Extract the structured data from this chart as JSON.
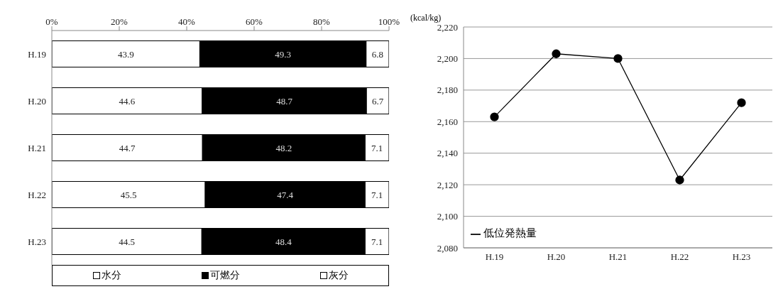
{
  "chart_data": [
    {
      "type": "bar",
      "orientation": "horizontal",
      "stacked": true,
      "categories": [
        "H.19",
        "H.20",
        "H.21",
        "H.22",
        "H.23"
      ],
      "series": [
        {
          "name": "水分",
          "color": "#ffffff",
          "values": [
            43.9,
            44.6,
            44.7,
            45.5,
            44.5
          ]
        },
        {
          "name": "可燃分",
          "color": "#000000",
          "values": [
            49.3,
            48.7,
            48.2,
            47.4,
            48.4
          ]
        },
        {
          "name": "灰分",
          "color": "#ffffff",
          "values": [
            6.8,
            6.7,
            7.1,
            7.1,
            7.1
          ]
        }
      ],
      "xlim": [
        0,
        100
      ],
      "xticks": [
        {
          "value": 0,
          "label": "0%"
        },
        {
          "value": 20,
          "label": "20%"
        },
        {
          "value": 40,
          "label": "40%"
        },
        {
          "value": 60,
          "label": "60%"
        },
        {
          "value": 80,
          "label": "80%"
        },
        {
          "value": 100,
          "label": "100%"
        }
      ],
      "data_labels": true,
      "legend": "bottom",
      "grid": false
    },
    {
      "type": "line",
      "ylabel": "(kcal/kg)",
      "categories": [
        "H.19",
        "H.20",
        "H.21",
        "H.22",
        "H.23"
      ],
      "series": [
        {
          "name": "低位発熱量",
          "color": "#000000",
          "values": [
            2163,
            2203,
            2200,
            2123,
            2172
          ]
        }
      ],
      "ylim": [
        2080,
        2220
      ],
      "yticks": [
        {
          "value": 2080,
          "label": "2,080"
        },
        {
          "value": 2100,
          "label": "2,100"
        },
        {
          "value": 2120,
          "label": "2,120"
        },
        {
          "value": 2140,
          "label": "2,140"
        },
        {
          "value": 2160,
          "label": "2,160"
        },
        {
          "value": 2180,
          "label": "2,180"
        },
        {
          "value": 2200,
          "label": "2,200"
        },
        {
          "value": 2220,
          "label": "2,220"
        }
      ],
      "grid": "y",
      "legend": "bottom left",
      "marker": "circle",
      "line_style": "solid"
    }
  ]
}
